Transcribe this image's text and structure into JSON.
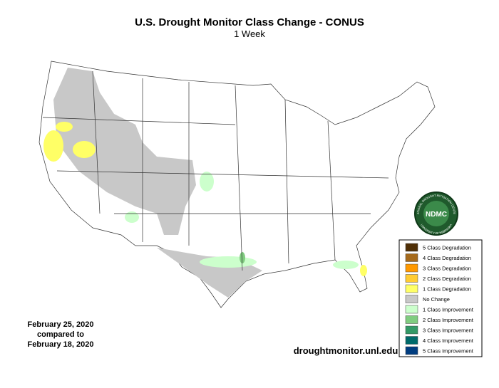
{
  "header": {
    "title": "U.S. Drought Monitor Class Change - CONUS",
    "subtitle": "1 Week"
  },
  "legend": {
    "items": [
      {
        "label": "5 Class Degradation",
        "color": "#4f2f06"
      },
      {
        "label": "4 Class Degradation",
        "color": "#a56a1c"
      },
      {
        "label": "3 Class Degradation",
        "color": "#ff9900"
      },
      {
        "label": "2 Class Degradation",
        "color": "#ffcc33"
      },
      {
        "label": "1 Class Degradation",
        "color": "#ffff66"
      },
      {
        "label": "No Change",
        "color": "#c8c8c8"
      },
      {
        "label": "1 Class Improvement",
        "color": "#ccffcc"
      },
      {
        "label": "2 Class Improvement",
        "color": "#80cc80"
      },
      {
        "label": "3 Class Improvement",
        "color": "#339966"
      },
      {
        "label": "4 Class Improvement",
        "color": "#006a6a"
      },
      {
        "label": "5 Class Improvement",
        "color": "#003d80"
      }
    ]
  },
  "date_note": [
    "February 25, 2020",
    "compared to",
    "February 18, 2020"
  ],
  "source": "droughtmonitor.unl.edu",
  "logo": {
    "text": "NDMC",
    "top_text": "NATIONAL DROUGHT MITIGATION CENTER",
    "bottom_text": "UNIVERSITY OF NEBRASKA"
  }
}
